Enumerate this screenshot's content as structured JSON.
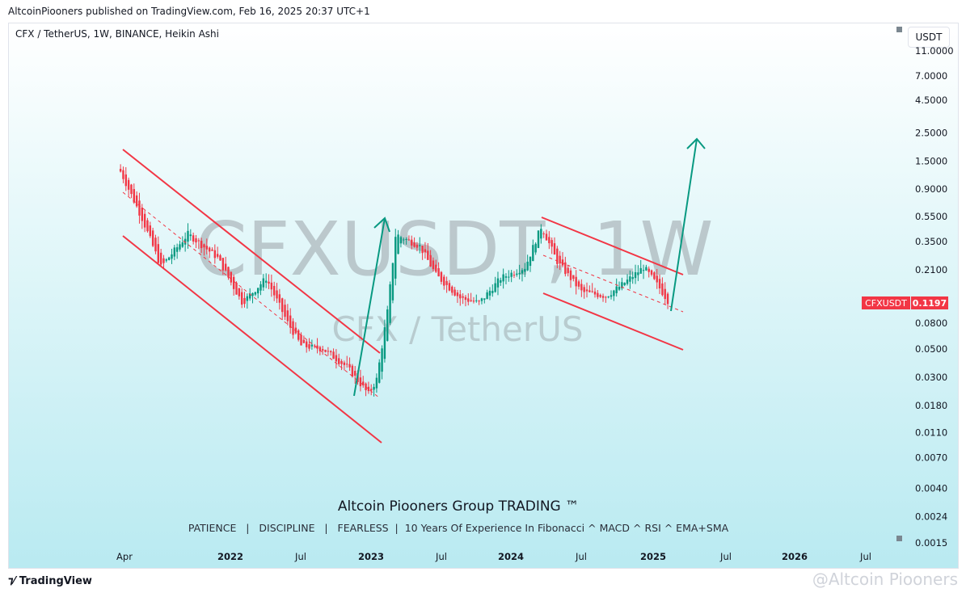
{
  "header": {
    "published": "AltcoinPiooners published on TradingView.com, Feb 16, 2025 20:37 UTC+1",
    "symbol_info": "CFX / TetherUS, 1W, BINANCE, Heikin Ashi",
    "currency": "USDT"
  },
  "watermark": {
    "line1": "CFXUSDT, 1W",
    "line2": "CFX / TetherUS"
  },
  "banner": {
    "title": "Altcoin Piooners Group TRADING ™",
    "subtitle": "PATIENCE   |   DISCIPLINE   |   FEARLESS  |  10 Years Of Experience In Fibonacci ^ MACD ^ RSI ^ EMA+SMA"
  },
  "footer": {
    "brand": "TradingView",
    "author_watermark": "@Altcoin Piooners"
  },
  "colors": {
    "up": "#089981",
    "down": "#f23645",
    "channel": "#f23645",
    "arrow": "#089981"
  },
  "chart_data": {
    "type": "candlestick",
    "scale": "log",
    "interval": "1W",
    "ylim": [
      0.0015,
      11
    ],
    "y_ticks": [
      "11.0000",
      "7.0000",
      "4.5000",
      "2.5000",
      "1.5000",
      "0.9000",
      "0.5500",
      "0.3500",
      "0.2100",
      "0.0800",
      "0.0500",
      "0.0300",
      "0.0180",
      "0.0110",
      "0.0070",
      "0.0040",
      "0.0024",
      "0.0015"
    ],
    "x_ticks": [
      "Apr",
      "2022",
      "Jul",
      "2023",
      "Jul",
      "2024",
      "Jul",
      "2025",
      "Jul",
      "2026",
      "Jul"
    ],
    "last_price": {
      "label": "CFXUSDT",
      "value": "0.1197"
    },
    "price_path": [
      [
        "2021-03-22",
        1.24
      ],
      [
        "2021-05-17",
        0.53
      ],
      [
        "2021-07-05",
        0.22
      ],
      [
        "2021-09-13",
        0.4
      ],
      [
        "2021-11-29",
        0.26
      ],
      [
        "2022-02-01",
        0.115
      ],
      [
        "2022-04-04",
        0.18
      ],
      [
        "2022-05-30",
        0.08
      ],
      [
        "2022-07-04",
        0.053
      ],
      [
        "2022-08-29",
        0.05
      ],
      [
        "2022-10-31",
        0.036
      ],
      [
        "2022-12-26",
        0.022
      ],
      [
        "2023-01-16",
        0.029
      ],
      [
        "2023-02-13",
        0.1
      ],
      [
        "2023-03-06",
        0.4
      ],
      [
        "2023-03-27",
        0.37
      ],
      [
        "2023-05-08",
        0.32
      ],
      [
        "2023-06-19",
        0.19
      ],
      [
        "2023-08-21",
        0.125
      ],
      [
        "2023-10-09",
        0.115
      ],
      [
        "2023-12-04",
        0.18
      ],
      [
        "2024-02-05",
        0.22
      ],
      [
        "2024-03-18",
        0.46
      ],
      [
        "2024-04-29",
        0.24
      ],
      [
        "2024-07-01",
        0.14
      ],
      [
        "2024-09-02",
        0.13
      ],
      [
        "2024-10-14",
        0.16
      ],
      [
        "2024-12-09",
        0.22
      ],
      [
        "2025-01-20",
        0.15
      ],
      [
        "2025-02-10",
        0.1197
      ]
    ]
  }
}
